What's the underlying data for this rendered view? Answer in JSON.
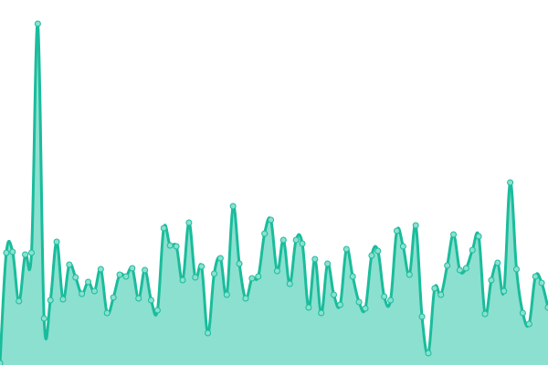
{
  "chart_data": {
    "type": "area",
    "title": "",
    "xlabel": "",
    "ylabel": "",
    "axes_visible": false,
    "grid": false,
    "legend": "none",
    "ylim": [
      0,
      400
    ],
    "x": [
      0,
      1,
      2,
      3,
      4,
      5,
      6,
      7,
      8,
      9,
      10,
      11,
      12,
      13,
      14,
      15,
      16,
      17,
      18,
      19,
      20,
      21,
      22,
      23,
      24,
      25,
      26,
      27,
      28,
      29,
      30,
      31,
      32,
      33,
      34,
      35,
      36,
      37,
      38,
      39,
      40,
      41,
      42,
      43,
      44,
      45,
      46,
      47,
      48,
      49,
      50,
      51,
      52,
      53,
      54,
      55,
      56,
      57,
      58,
      59,
      60,
      61,
      62,
      63,
      64,
      65,
      66,
      67,
      68,
      69,
      70,
      71,
      72,
      73,
      74,
      75,
      76,
      77,
      78,
      79,
      80,
      81,
      82,
      83,
      84,
      85,
      86,
      87
    ],
    "series": [
      {
        "values": [
          2,
          123,
          124,
          70,
          121,
          123,
          374,
          51,
          71,
          135,
          72,
          110,
          96,
          78,
          91,
          81,
          105,
          57,
          74,
          99,
          97,
          106,
          73,
          104,
          71,
          60,
          150,
          131,
          130,
          93,
          156,
          96,
          108,
          35,
          100,
          117,
          77,
          174,
          111,
          73,
          95,
          97,
          144,
          159,
          103,
          137,
          89,
          137,
          133,
          63,
          116,
          57,
          111,
          77,
          66,
          127,
          97,
          69,
          62,
          120,
          125,
          75,
          71,
          147,
          130,
          99,
          153,
          53,
          13,
          84,
          77,
          109,
          143,
          104,
          106,
          126,
          141,
          56,
          93,
          112,
          81,
          200,
          105,
          57,
          45,
          97,
          90,
          63
        ],
        "line_color": "#1abc9c",
        "fill_color": "#8be0cf",
        "marker_fill": "#8be0cf",
        "markers": true,
        "smooth": true
      }
    ]
  }
}
